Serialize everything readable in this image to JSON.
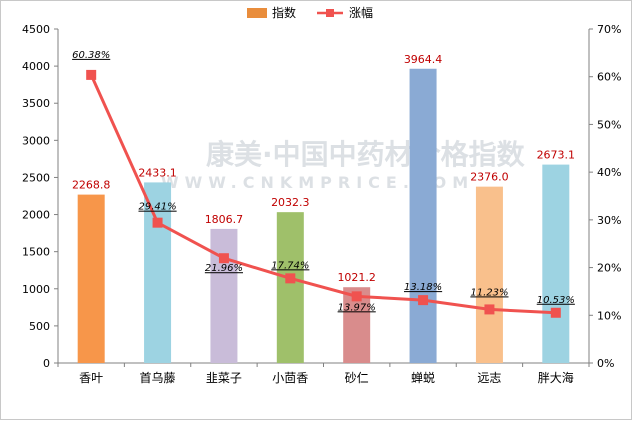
{
  "chart_data": {
    "type": "bar",
    "categories": [
      "香叶",
      "首乌藤",
      "韭菜子",
      "小茴香",
      "砂仁",
      "蝉蜕",
      "远志",
      "胖大海"
    ],
    "series": [
      {
        "name": "指数",
        "type": "bar",
        "axis": "left",
        "values": [
          2268.8,
          2433.1,
          1806.7,
          2032.3,
          1021.2,
          3964.4,
          2376.0,
          2673.1
        ],
        "labels": [
          "2268.8",
          "2433.1",
          "1806.7",
          "2032.3",
          "1021.2",
          "3964.4",
          "2376.0",
          "2673.1"
        ],
        "colors": [
          "#f7964a",
          "#9dd3e2",
          "#c9bcd9",
          "#9fc06a",
          "#d98c8c",
          "#8aaad4",
          "#f9c08c",
          "#9dd3e2"
        ]
      },
      {
        "name": "涨幅",
        "type": "line",
        "axis": "right",
        "values": [
          60.38,
          29.41,
          21.96,
          17.74,
          13.97,
          13.18,
          11.23,
          10.53
        ],
        "labels": [
          "60.38%",
          "29.41%",
          "21.96%",
          "17.74%",
          "13.97%",
          "13.18%",
          "11.23%",
          "10.53%"
        ],
        "color": "#f0524f"
      }
    ],
    "ylim_left": [
      0,
      4500
    ],
    "yticks_left": [
      0,
      500,
      1000,
      1500,
      2000,
      2500,
      3000,
      3500,
      4000,
      4500
    ],
    "ylim_right": [
      0,
      70
    ],
    "yticks_right": [
      "0%",
      "10%",
      "20%",
      "30%",
      "40%",
      "50%",
      "60%",
      "70%"
    ],
    "legend_position": "top-center",
    "grid": false
  },
  "watermark": {
    "line1": "康美·中国中药材价格指数",
    "line2": "WWW.CNKMPRICE.COM"
  }
}
